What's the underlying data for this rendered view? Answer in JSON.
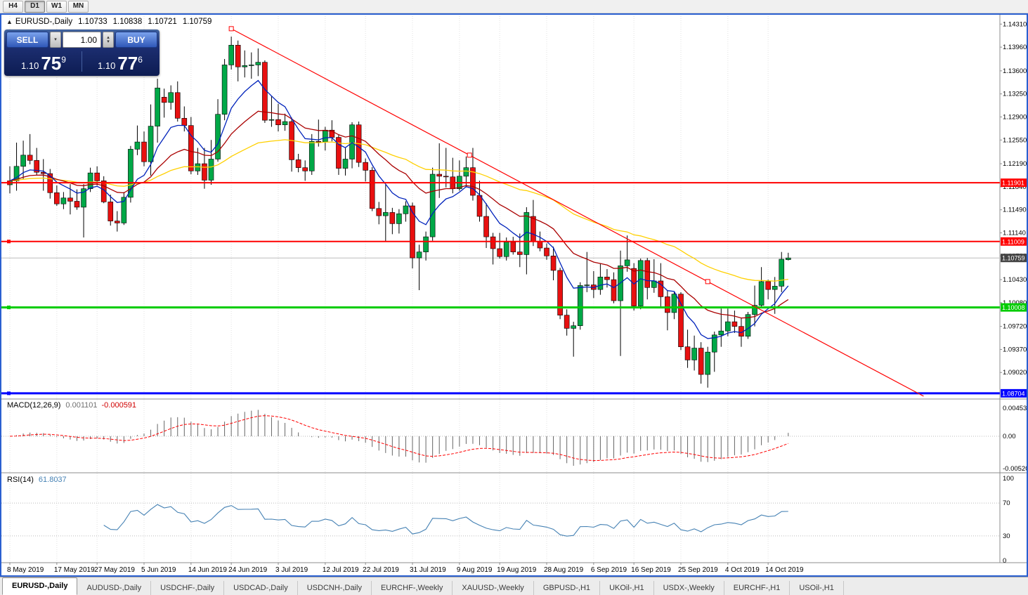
{
  "colors": {
    "window_border": "#2A5FD0",
    "candle_up": "#00A847",
    "candle_down": "#E81010",
    "resistance_line": "#FF0000",
    "support_line_green": "#00CC00",
    "support_line_blue": "#0000FF",
    "current_price_badge": "#444444",
    "macd_signal": "#FF0000",
    "rsi_line": "#4682B4"
  },
  "toolbar": {
    "timeframes": [
      {
        "label": "H4",
        "active": false
      },
      {
        "label": "D1",
        "active": true
      },
      {
        "label": "W1",
        "active": false
      },
      {
        "label": "MN",
        "active": false
      }
    ]
  },
  "chart": {
    "symbol_title": "EURUSD-,Daily",
    "ohlc": {
      "open": "1.10733",
      "high": "1.10838",
      "low": "1.10721",
      "close": "1.10759"
    },
    "trade_panel": {
      "sell_label": "SELL",
      "buy_label": "BUY",
      "volume": "1.00",
      "sell_price": {
        "base": "1.10",
        "big": "75",
        "sup": "9"
      },
      "buy_price": {
        "base": "1.10",
        "big": "77",
        "sup": "6"
      }
    }
  },
  "price_axis": {
    "labels": [
      "1.14310",
      "1.13960",
      "1.13600",
      "1.13250",
      "1.12900",
      "1.12550",
      "1.12190",
      "1.11840",
      "1.11490",
      "1.11140",
      "1.10790",
      "1.10430",
      "1.10080",
      "1.09720",
      "1.09370",
      "1.09020"
    ]
  },
  "levels": [
    {
      "price": 1.11901,
      "label": "1.11901",
      "color": "#FF0000",
      "width": 2
    },
    {
      "price": 1.11009,
      "label": "1.11009",
      "color": "#FF0000",
      "width": 2
    },
    {
      "price": 1.10008,
      "label": "1.10008",
      "color": "#00CC00",
      "width": 3
    },
    {
      "price": 1.08704,
      "label": "1.08704",
      "color": "#0000FF",
      "width": 3
    }
  ],
  "current_price": {
    "value": 1.10759,
    "label": "1.10759",
    "badge_color": "#444444"
  },
  "trendline": {
    "color": "#FF0000",
    "anchors": [
      [
        33,
        1.1424
      ],
      [
        104,
        1.104
      ]
    ]
  },
  "indicators": {
    "macd": {
      "title": "MACD(12,26,9)",
      "value_main": "0.001101",
      "value_signal": "-0.000591",
      "axis": [
        "0.004536",
        "0.00",
        "-0.005205"
      ]
    },
    "rsi": {
      "title": "RSI(14)",
      "value": "61.8037",
      "axis": [
        "100",
        "70",
        "30",
        "0"
      ],
      "levels": [
        70,
        30
      ]
    }
  },
  "date_axis": {
    "ticks": [
      {
        "i": 0,
        "label": "8 May 2019"
      },
      {
        "i": 7,
        "label": "17 May 2019"
      },
      {
        "i": 13,
        "label": "27 May 2019"
      },
      {
        "i": 20,
        "label": "5 Jun 2019"
      },
      {
        "i": 27,
        "label": "14 Jun 2019"
      },
      {
        "i": 33,
        "label": "24 Jun 2019"
      },
      {
        "i": 40,
        "label": "3 Jul 2019"
      },
      {
        "i": 47,
        "label": "12 Jul 2019"
      },
      {
        "i": 53,
        "label": "22 Jul 2019"
      },
      {
        "i": 60,
        "label": "31 Jul 2019"
      },
      {
        "i": 67,
        "label": "9 Aug 2019"
      },
      {
        "i": 73,
        "label": "19 Aug 2019"
      },
      {
        "i": 80,
        "label": "28 Aug 2019"
      },
      {
        "i": 87,
        "label": "6 Sep 2019"
      },
      {
        "i": 93,
        "label": "16 Sep 2019"
      },
      {
        "i": 100,
        "label": "25 Sep 2019"
      },
      {
        "i": 107,
        "label": "4 Oct 2019"
      },
      {
        "i": 113,
        "label": "14 Oct 2019"
      }
    ]
  },
  "tabs": [
    {
      "label": "EURUSD-,Daily",
      "active": true
    },
    {
      "label": "AUDUSD-,Daily",
      "active": false
    },
    {
      "label": "USDCHF-,Daily",
      "active": false
    },
    {
      "label": "USDCAD-,Daily",
      "active": false
    },
    {
      "label": "USDCNH-,Daily",
      "active": false
    },
    {
      "label": "EURCHF-,Weekly",
      "active": false
    },
    {
      "label": "XAUUSD-,Weekly",
      "active": false
    },
    {
      "label": "GBPUSD-,H1",
      "active": false
    },
    {
      "label": "UKOil-,H1",
      "active": false
    },
    {
      "label": "USDX-,Weekly",
      "active": false
    },
    {
      "label": "EURCHF-,H1",
      "active": false
    },
    {
      "label": "USOil-,H1",
      "active": false
    }
  ],
  "chart_data": {
    "type": "candlestick",
    "symbol": "EURUSD",
    "timeframe": "Daily",
    "title": "EURUSD-,Daily",
    "price_range": [
      1.0866,
      1.14345
    ],
    "overlays": {
      "ma_fast_period": 8,
      "ma_mid_period": 20,
      "ma_slow_period": 50
    },
    "colors": {
      "up": "#00A847",
      "down": "#E81010",
      "ma_fast": "#0022BB",
      "ma_mid": "#AA0000",
      "ma_slow": "#FFD000"
    },
    "macd_params": [
      12,
      26,
      9
    ],
    "rsi_params": [
      14
    ],
    "macd_range": [
      -0.005205,
      0.004536
    ],
    "candles": [
      [
        1.1187,
        1.1215,
        1.1174,
        1.1193
      ],
      [
        1.1193,
        1.1251,
        1.1178,
        1.1215
      ],
      [
        1.1215,
        1.1254,
        1.1196,
        1.1232
      ],
      [
        1.1232,
        1.1264,
        1.1218,
        1.1224
      ],
      [
        1.1224,
        1.1243,
        1.1201,
        1.1206
      ],
      [
        1.1206,
        1.1226,
        1.1178,
        1.1204
      ],
      [
        1.1204,
        1.1211,
        1.1166,
        1.1175
      ],
      [
        1.1175,
        1.1186,
        1.1155,
        1.1158
      ],
      [
        1.1158,
        1.1176,
        1.115,
        1.1167
      ],
      [
        1.1167,
        1.1188,
        1.1142,
        1.1162
      ],
      [
        1.1162,
        1.118,
        1.1149,
        1.1153
      ],
      [
        1.1153,
        1.1188,
        1.1107,
        1.1181
      ],
      [
        1.1181,
        1.1213,
        1.1176,
        1.1205
      ],
      [
        1.1205,
        1.1215,
        1.1186,
        1.1193
      ],
      [
        1.1193,
        1.12,
        1.1159,
        1.1161
      ],
      [
        1.1161,
        1.1172,
        1.1125,
        1.1132
      ],
      [
        1.1132,
        1.1147,
        1.1116,
        1.1129
      ],
      [
        1.1129,
        1.1176,
        1.1126,
        1.1168
      ],
      [
        1.1168,
        1.1246,
        1.116,
        1.1241
      ],
      [
        1.1241,
        1.1277,
        1.1232,
        1.1252
      ],
      [
        1.1252,
        1.1268,
        1.1215,
        1.1222
      ],
      [
        1.1222,
        1.1309,
        1.1201,
        1.1276
      ],
      [
        1.1276,
        1.1348,
        1.1251,
        1.1334
      ],
      [
        1.132,
        1.1333,
        1.1289,
        1.1312
      ],
      [
        1.1312,
        1.1338,
        1.1301,
        1.1327
      ],
      [
        1.1327,
        1.1344,
        1.1283,
        1.1288
      ],
      [
        1.1288,
        1.1306,
        1.1268,
        1.1277
      ],
      [
        1.1277,
        1.129,
        1.1203,
        1.1208
      ],
      [
        1.1208,
        1.1243,
        1.1202,
        1.1219
      ],
      [
        1.1219,
        1.1243,
        1.1181,
        1.1194
      ],
      [
        1.1194,
        1.1255,
        1.1187,
        1.1226
      ],
      [
        1.1226,
        1.1317,
        1.1222,
        1.1294
      ],
      [
        1.1294,
        1.1378,
        1.1285,
        1.1369
      ],
      [
        1.1369,
        1.1412,
        1.1362,
        1.1399
      ],
      [
        1.1399,
        1.1406,
        1.1344,
        1.1366
      ],
      [
        1.1366,
        1.1391,
        1.135,
        1.1368
      ],
      [
        1.1368,
        1.1388,
        1.1348,
        1.1369
      ],
      [
        1.1369,
        1.1394,
        1.1352,
        1.1373
      ],
      [
        1.1373,
        1.1376,
        1.1281,
        1.1285
      ],
      [
        1.1285,
        1.1322,
        1.1275,
        1.1286
      ],
      [
        1.1286,
        1.131,
        1.1268,
        1.1278
      ],
      [
        1.1278,
        1.1295,
        1.1269,
        1.1283
      ],
      [
        1.1283,
        1.1289,
        1.1207,
        1.1225
      ],
      [
        1.1225,
        1.1234,
        1.1206,
        1.1213
      ],
      [
        1.1213,
        1.1224,
        1.1193,
        1.1208
      ],
      [
        1.1208,
        1.1264,
        1.1202,
        1.1253
      ],
      [
        1.1253,
        1.1286,
        1.1245,
        1.1252
      ],
      [
        1.1252,
        1.1275,
        1.1239,
        1.127
      ],
      [
        1.127,
        1.1285,
        1.1253,
        1.1259
      ],
      [
        1.1259,
        1.1263,
        1.1202,
        1.1212
      ],
      [
        1.1212,
        1.1244,
        1.1201,
        1.1226
      ],
      [
        1.1226,
        1.1282,
        1.1212,
        1.1278
      ],
      [
        1.1278,
        1.1283,
        1.1214,
        1.1221
      ],
      [
        1.1221,
        1.1227,
        1.1192,
        1.1209
      ],
      [
        1.1209,
        1.1214,
        1.1147,
        1.1151
      ],
      [
        1.1151,
        1.1161,
        1.1127,
        1.114
      ],
      [
        1.114,
        1.1187,
        1.1101,
        1.1145
      ],
      [
        1.1145,
        1.1152,
        1.1112,
        1.1128
      ],
      [
        1.1128,
        1.115,
        1.1113,
        1.1143
      ],
      [
        1.1143,
        1.1162,
        1.1131,
        1.1155
      ],
      [
        1.1155,
        1.116,
        1.106,
        1.1076
      ],
      [
        1.1076,
        1.1096,
        1.1027,
        1.1085
      ],
      [
        1.1085,
        1.1116,
        1.1072,
        1.1108
      ],
      [
        1.1108,
        1.1213,
        1.1102,
        1.1203
      ],
      [
        1.1203,
        1.125,
        1.1167,
        1.12
      ],
      [
        1.12,
        1.1243,
        1.1183,
        1.1199
      ],
      [
        1.1199,
        1.1228,
        1.1174,
        1.1181
      ],
      [
        1.1181,
        1.1224,
        1.1178,
        1.12
      ],
      [
        1.12,
        1.123,
        1.1183,
        1.1213
      ],
      [
        1.1213,
        1.1243,
        1.1163,
        1.1171
      ],
      [
        1.1171,
        1.1193,
        1.1131,
        1.1139
      ],
      [
        1.1139,
        1.1159,
        1.1091,
        1.1108
      ],
      [
        1.1108,
        1.1114,
        1.1066,
        1.109
      ],
      [
        1.109,
        1.1114,
        1.1075,
        1.1078
      ],
      [
        1.1078,
        1.1107,
        1.1072,
        1.11
      ],
      [
        1.11,
        1.1108,
        1.1081,
        1.1085
      ],
      [
        1.1085,
        1.1113,
        1.1062,
        1.1081
      ],
      [
        1.1081,
        1.1153,
        1.1051,
        1.1145
      ],
      [
        1.1139,
        1.1164,
        1.1094,
        1.1101
      ],
      [
        1.1101,
        1.1116,
        1.1086,
        1.1091
      ],
      [
        1.1091,
        1.1098,
        1.1073,
        1.1079
      ],
      [
        1.1079,
        1.1093,
        1.1042,
        1.1057
      ],
      [
        1.1057,
        1.1061,
        1.0983,
        1.0989
      ],
      [
        1.0989,
        1.0998,
        1.0958,
        1.0969
      ],
      [
        1.0969,
        1.0979,
        1.0926,
        1.0973
      ],
      [
        1.0973,
        1.1039,
        1.0967,
        1.1034
      ],
      [
        1.1034,
        1.1085,
        1.1024,
        1.1035
      ],
      [
        1.1035,
        1.1056,
        1.1015,
        1.1028
      ],
      [
        1.1028,
        1.1067,
        1.102,
        1.1047
      ],
      [
        1.1047,
        1.1059,
        1.1031,
        1.1043
      ],
      [
        1.1043,
        1.1054,
        1.1007,
        1.1011
      ],
      [
        1.1011,
        1.1087,
        1.0927,
        1.1064
      ],
      [
        1.1064,
        1.111,
        1.1055,
        1.1073
      ],
      [
        1.106,
        1.1068,
        1.0996,
        1.1003
      ],
      [
        1.1003,
        1.1075,
        1.0998,
        1.1072
      ],
      [
        1.1072,
        1.1076,
        1.1013,
        1.1031
      ],
      [
        1.1031,
        1.1074,
        1.1023,
        1.1041
      ],
      [
        1.1041,
        1.1068,
        1.1002,
        1.1017
      ],
      [
        1.1017,
        1.1026,
        1.0966,
        1.0993
      ],
      [
        1.0993,
        1.1024,
        1.0983,
        1.1021
      ],
      [
        1.1021,
        1.1024,
        1.0936,
        1.0941
      ],
      [
        1.0941,
        1.0967,
        1.0909,
        1.0921
      ],
      [
        1.0921,
        1.0958,
        1.0905,
        1.0939
      ],
      [
        1.0939,
        1.0948,
        1.0885,
        1.0899
      ],
      [
        1.0899,
        1.0941,
        1.0879,
        1.0933
      ],
      [
        1.0933,
        1.0964,
        1.0903,
        1.0959
      ],
      [
        1.0959,
        1.0999,
        1.0941,
        1.0965
      ],
      [
        1.0965,
        1.0999,
        1.0957,
        1.0979
      ],
      [
        1.0979,
        1.0996,
        1.0962,
        1.0972
      ],
      [
        1.0972,
        1.0985,
        1.0941,
        1.0957
      ],
      [
        1.0957,
        1.0994,
        1.0953,
        1.099
      ],
      [
        1.099,
        1.1034,
        1.0972,
        1.1004
      ],
      [
        1.1004,
        1.1062,
        1.1002,
        1.104
      ],
      [
        1.104,
        1.1043,
        1.1013,
        1.1028
      ],
      [
        1.1028,
        1.1047,
        1.0991,
        1.1033
      ],
      [
        1.1033,
        1.1085,
        1.1024,
        1.1074
      ],
      [
        1.10733,
        1.10838,
        1.10721,
        1.10759
      ]
    ]
  }
}
